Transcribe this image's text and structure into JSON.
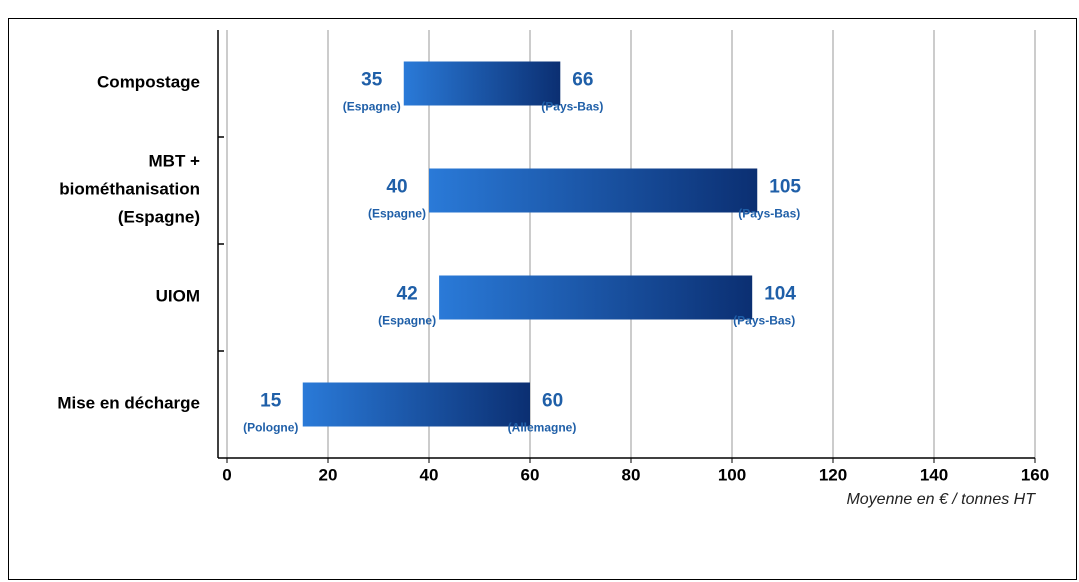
{
  "chart_data": {
    "type": "range-bar",
    "categories": [
      [
        "Compostage"
      ],
      [
        "MBT +",
        "biométhanisation",
        "(Espagne)"
      ],
      [
        "UIOM"
      ],
      [
        "Mise en décharge"
      ]
    ],
    "low": [
      35,
      40,
      42,
      15
    ],
    "high": [
      66,
      105,
      104,
      60
    ],
    "low_notes": [
      "(Espagne)",
      "(Espagne)",
      "(Espagne)",
      "(Pologne)"
    ],
    "high_notes": [
      "(Pays-Bas)",
      "(Pays-Bas)",
      "(Pays-Bas)",
      "(Allemagne)"
    ],
    "colors": [
      "#2a7ad8",
      "#0b2f72"
    ],
    "xlim": [
      0,
      160
    ],
    "xticks": [
      0,
      20,
      40,
      60,
      80,
      100,
      120,
      140,
      160
    ],
    "x_label": "Moyenne en € / tonnes HT",
    "grid": true
  }
}
